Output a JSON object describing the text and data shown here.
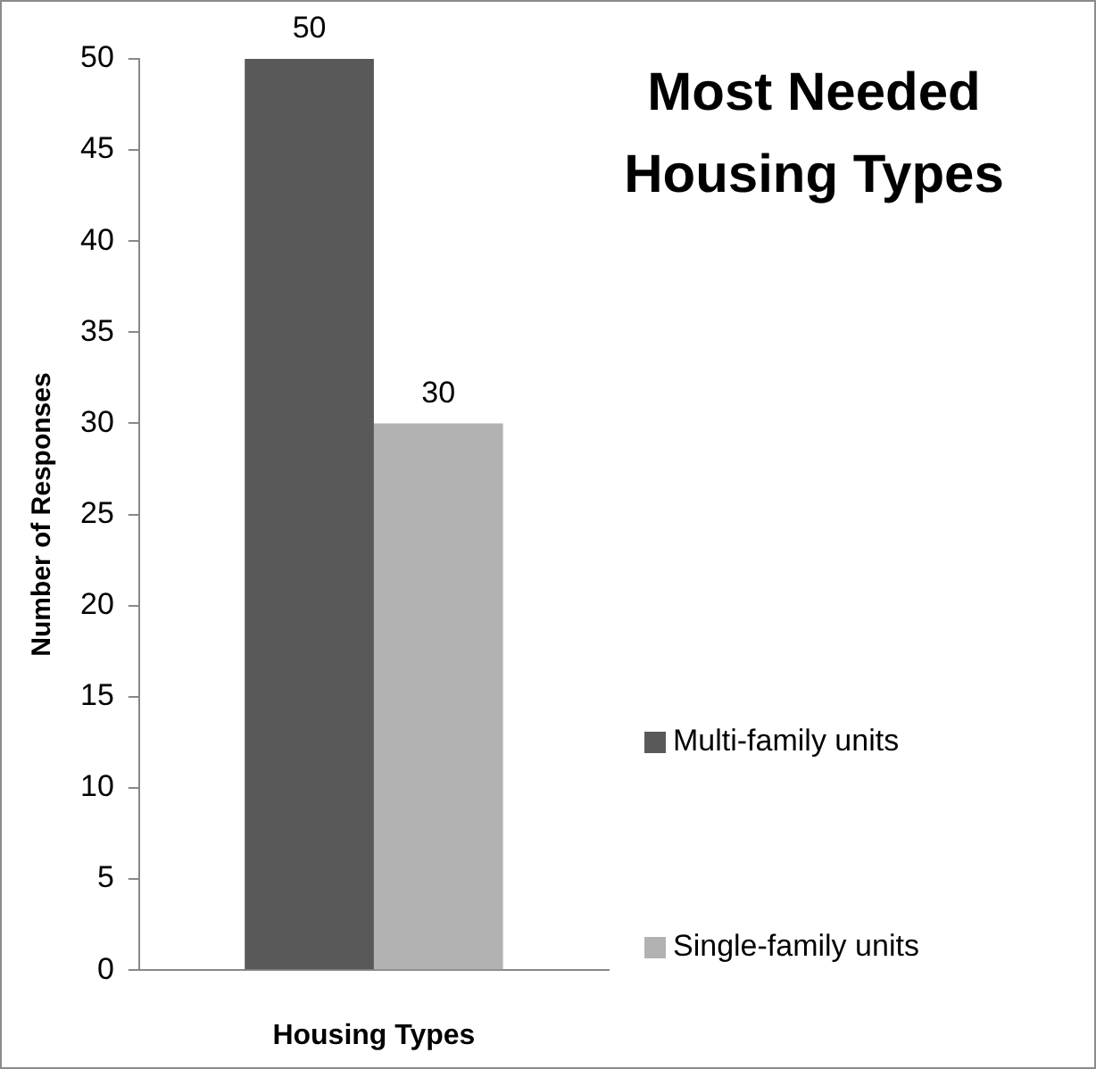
{
  "chart_data": {
    "type": "bar",
    "title": "Most Needed Housing Types",
    "xlabel": "Housing Types",
    "ylabel": "Number of Responses",
    "categories": [
      null
    ],
    "series": [
      {
        "name": "Multi-family units",
        "color": "#595959",
        "values": [
          50
        ]
      },
      {
        "name": "Single-family units",
        "color": "#b2b2b2",
        "values": [
          30
        ]
      }
    ],
    "ylim": [
      0,
      50
    ],
    "yticks": [
      0,
      5,
      10,
      15,
      20,
      25,
      30,
      35,
      40,
      45,
      50
    ],
    "grid": false,
    "legend": "right",
    "data_labels": true
  }
}
